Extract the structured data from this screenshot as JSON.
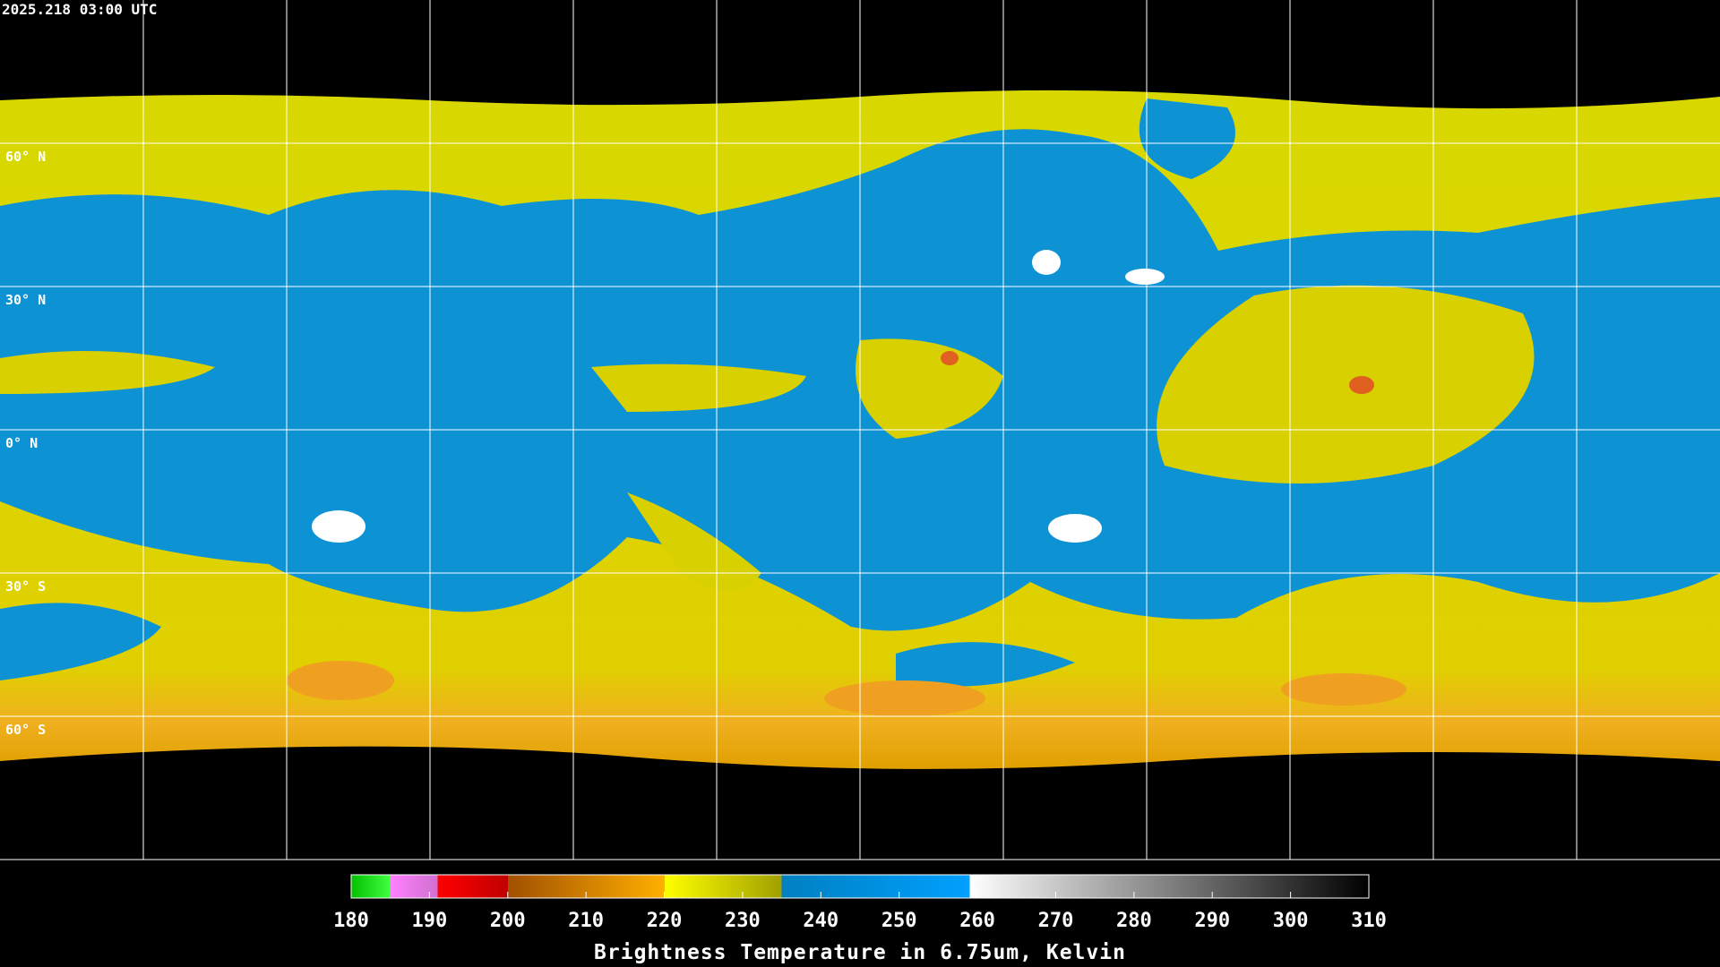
{
  "header": {
    "timestamp": "2025.218 03:00 UTC"
  },
  "map": {
    "latitude_labels": [
      "60° N",
      "30° N",
      "0° N",
      "30° S",
      "60° S"
    ]
  },
  "colorbar": {
    "range": [
      180,
      310
    ],
    "ticks": [
      180,
      190,
      200,
      210,
      220,
      230,
      240,
      250,
      260,
      270,
      280,
      290,
      300,
      310
    ],
    "title": "Brightness Temperature in 6.75um, Kelvin"
  }
}
